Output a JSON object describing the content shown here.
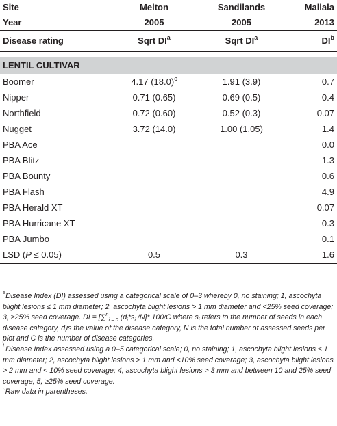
{
  "header": {
    "site_label": "Site",
    "year_label": "Year",
    "rating_label": "Disease rating",
    "sites": [
      {
        "name": "Melton",
        "year": "2005",
        "rating": "Sqrt DI",
        "sup": "a"
      },
      {
        "name": "Sandilands",
        "year": "2005",
        "rating": "Sqrt DI",
        "sup": "a"
      },
      {
        "name": "Mallala",
        "year": "2013",
        "rating": "DI",
        "sup": "b"
      }
    ]
  },
  "section_title": "LENTIL CULTIVAR",
  "rows": [
    {
      "cultivar": "Boomer",
      "melton": "4.17 (18.0)",
      "melton_sup": "c",
      "sandilands": "1.91 (3.9)",
      "mallala": "0.7"
    },
    {
      "cultivar": "Nipper",
      "melton": "0.71 (0.65)",
      "sandilands": "0.69 (0.5)",
      "mallala": "0.4"
    },
    {
      "cultivar": "Northfield",
      "melton": "0.72 (0.60)",
      "sandilands": "0.52 (0.3)",
      "mallala": "0.07"
    },
    {
      "cultivar": "Nugget",
      "melton": "3.72 (14.0)",
      "sandilands": "1.00 (1.05)",
      "mallala": "1.4"
    },
    {
      "cultivar": "PBA Ace",
      "melton": "",
      "sandilands": "",
      "mallala": "0.0"
    },
    {
      "cultivar": "PBA Blitz",
      "melton": "",
      "sandilands": "",
      "mallala": "1.3"
    },
    {
      "cultivar": "PBA Bounty",
      "melton": "",
      "sandilands": "",
      "mallala": "0.6"
    },
    {
      "cultivar": "PBA Flash",
      "melton": "",
      "sandilands": "",
      "mallala": "4.9"
    },
    {
      "cultivar": "PBA Herald XT",
      "melton": "",
      "sandilands": "",
      "mallala": "0.07"
    },
    {
      "cultivar": "PBA Hurricane XT",
      "melton": "",
      "sandilands": "",
      "mallala": "0.3"
    },
    {
      "cultivar": "PBA Jumbo",
      "melton": "",
      "sandilands": "",
      "mallala": "0.1"
    }
  ],
  "lsd": {
    "label_pre": "LSD (",
    "label_p": "P",
    "label_post": " ≤ 0.05)",
    "melton": "0.5",
    "sandilands": "0.3",
    "mallala": "1.6"
  },
  "footnotes": {
    "a": {
      "mark": "a",
      "t1": "Disease Index (DI) assessed using a categorical scale of 0–3 whereby 0, no staining; 1, ascochyta blight lesions ≤ 1 mm diameter; 2, ascochyta blight lesions > 1 mm diameter and <25% seed coverage; 3, ≥25% seed coverage. DI = [",
      "sum": "∑",
      "sum_sub": "i = 0",
      "sum_sup": "n",
      "t2": " (d",
      "di_sub": "i",
      "t3": "*s",
      "si_sub": "i",
      "t4": " /N]* 100/C where s",
      "s_sub2": "i",
      "t5": " refers to the number of seeds in each disease category, d",
      "d_sub2": "i",
      "t6": "is the value of the disease category, N is the total number of assessed seeds per plot and C is the number of disease categories."
    },
    "b": {
      "mark": "b",
      "text": "Disease Index assessed using a 0–5 categorical scale; 0, no staining; 1, ascochyta blight lesions ≤ 1 mm diameter; 2, ascochyta blight lesions > 1 mm and <10% seed coverage; 3, ascochyta blight lesions > 2 mm and < 10% seed coverage; 4, ascochyta blight lesions > 3 mm and between 10 and 25% seed coverage; 5, ≥25% seed coverage."
    },
    "c": {
      "mark": "c",
      "text": "Raw data in parentheses."
    }
  }
}
